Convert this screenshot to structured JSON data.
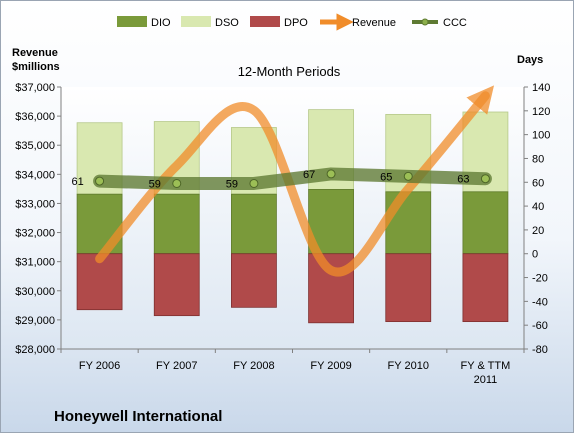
{
  "chart_data": {
    "type": "bar",
    "title": "12-Month Periods",
    "company": "Honeywell International",
    "categories": [
      "FY 2006",
      "FY 2007",
      "FY 2008",
      "FY 2009",
      "FY 2010",
      "FY & TTM 2011"
    ],
    "left_axis": {
      "label_line1": "Revenue",
      "label_line2": "$millions",
      "ylim": [
        28000,
        37000
      ],
      "ticks": [
        28000,
        29000,
        30000,
        31000,
        32000,
        33000,
        34000,
        35000,
        36000,
        37000
      ],
      "tick_labels": [
        "$28,000",
        "$29,000",
        "$30,000",
        "$31,000",
        "$32,000",
        "$33,000",
        "$34,000",
        "$35,000",
        "$36,000",
        "$37,000"
      ]
    },
    "right_axis": {
      "label": "Days",
      "ylim": [
        -80,
        140
      ],
      "ticks": [
        -80,
        -60,
        -40,
        -20,
        0,
        20,
        40,
        60,
        80,
        100,
        120,
        140
      ],
      "tick_labels": [
        "-80",
        "-60",
        "-40",
        "-20",
        "0",
        "20",
        "40",
        "60",
        "80",
        "100",
        "120",
        "140"
      ]
    },
    "series": [
      {
        "name": "DIO",
        "axis": "right",
        "kind": "stacked-bar",
        "color": "#7a9a3a",
        "values": [
          50,
          50,
          50,
          54,
          52,
          52
        ]
      },
      {
        "name": "DSO",
        "axis": "right",
        "kind": "stacked-bar",
        "color": "#d9e8b0",
        "values": [
          60,
          61,
          56,
          67,
          65,
          67
        ]
      },
      {
        "name": "DPO",
        "axis": "right",
        "kind": "negative-bar",
        "color": "#b04a4a",
        "values": [
          -47,
          -52,
          -45,
          -58,
          -57,
          -57
        ]
      },
      {
        "name": "Revenue",
        "axis": "left",
        "kind": "line",
        "color": "#f08c2a",
        "values": [
          31100,
          34300,
          36200,
          30700,
          33500,
          36700
        ]
      },
      {
        "name": "CCC",
        "axis": "right",
        "kind": "line",
        "color": "#5e7a32",
        "values": [
          61,
          59,
          59,
          67,
          65,
          63
        ],
        "labels": [
          "61",
          "59",
          "59",
          "67",
          "65",
          "63"
        ]
      }
    ],
    "legend": {
      "position": "top",
      "items": [
        "DIO",
        "DSO",
        "DPO",
        "Revenue",
        "CCC"
      ]
    },
    "grid": false
  }
}
